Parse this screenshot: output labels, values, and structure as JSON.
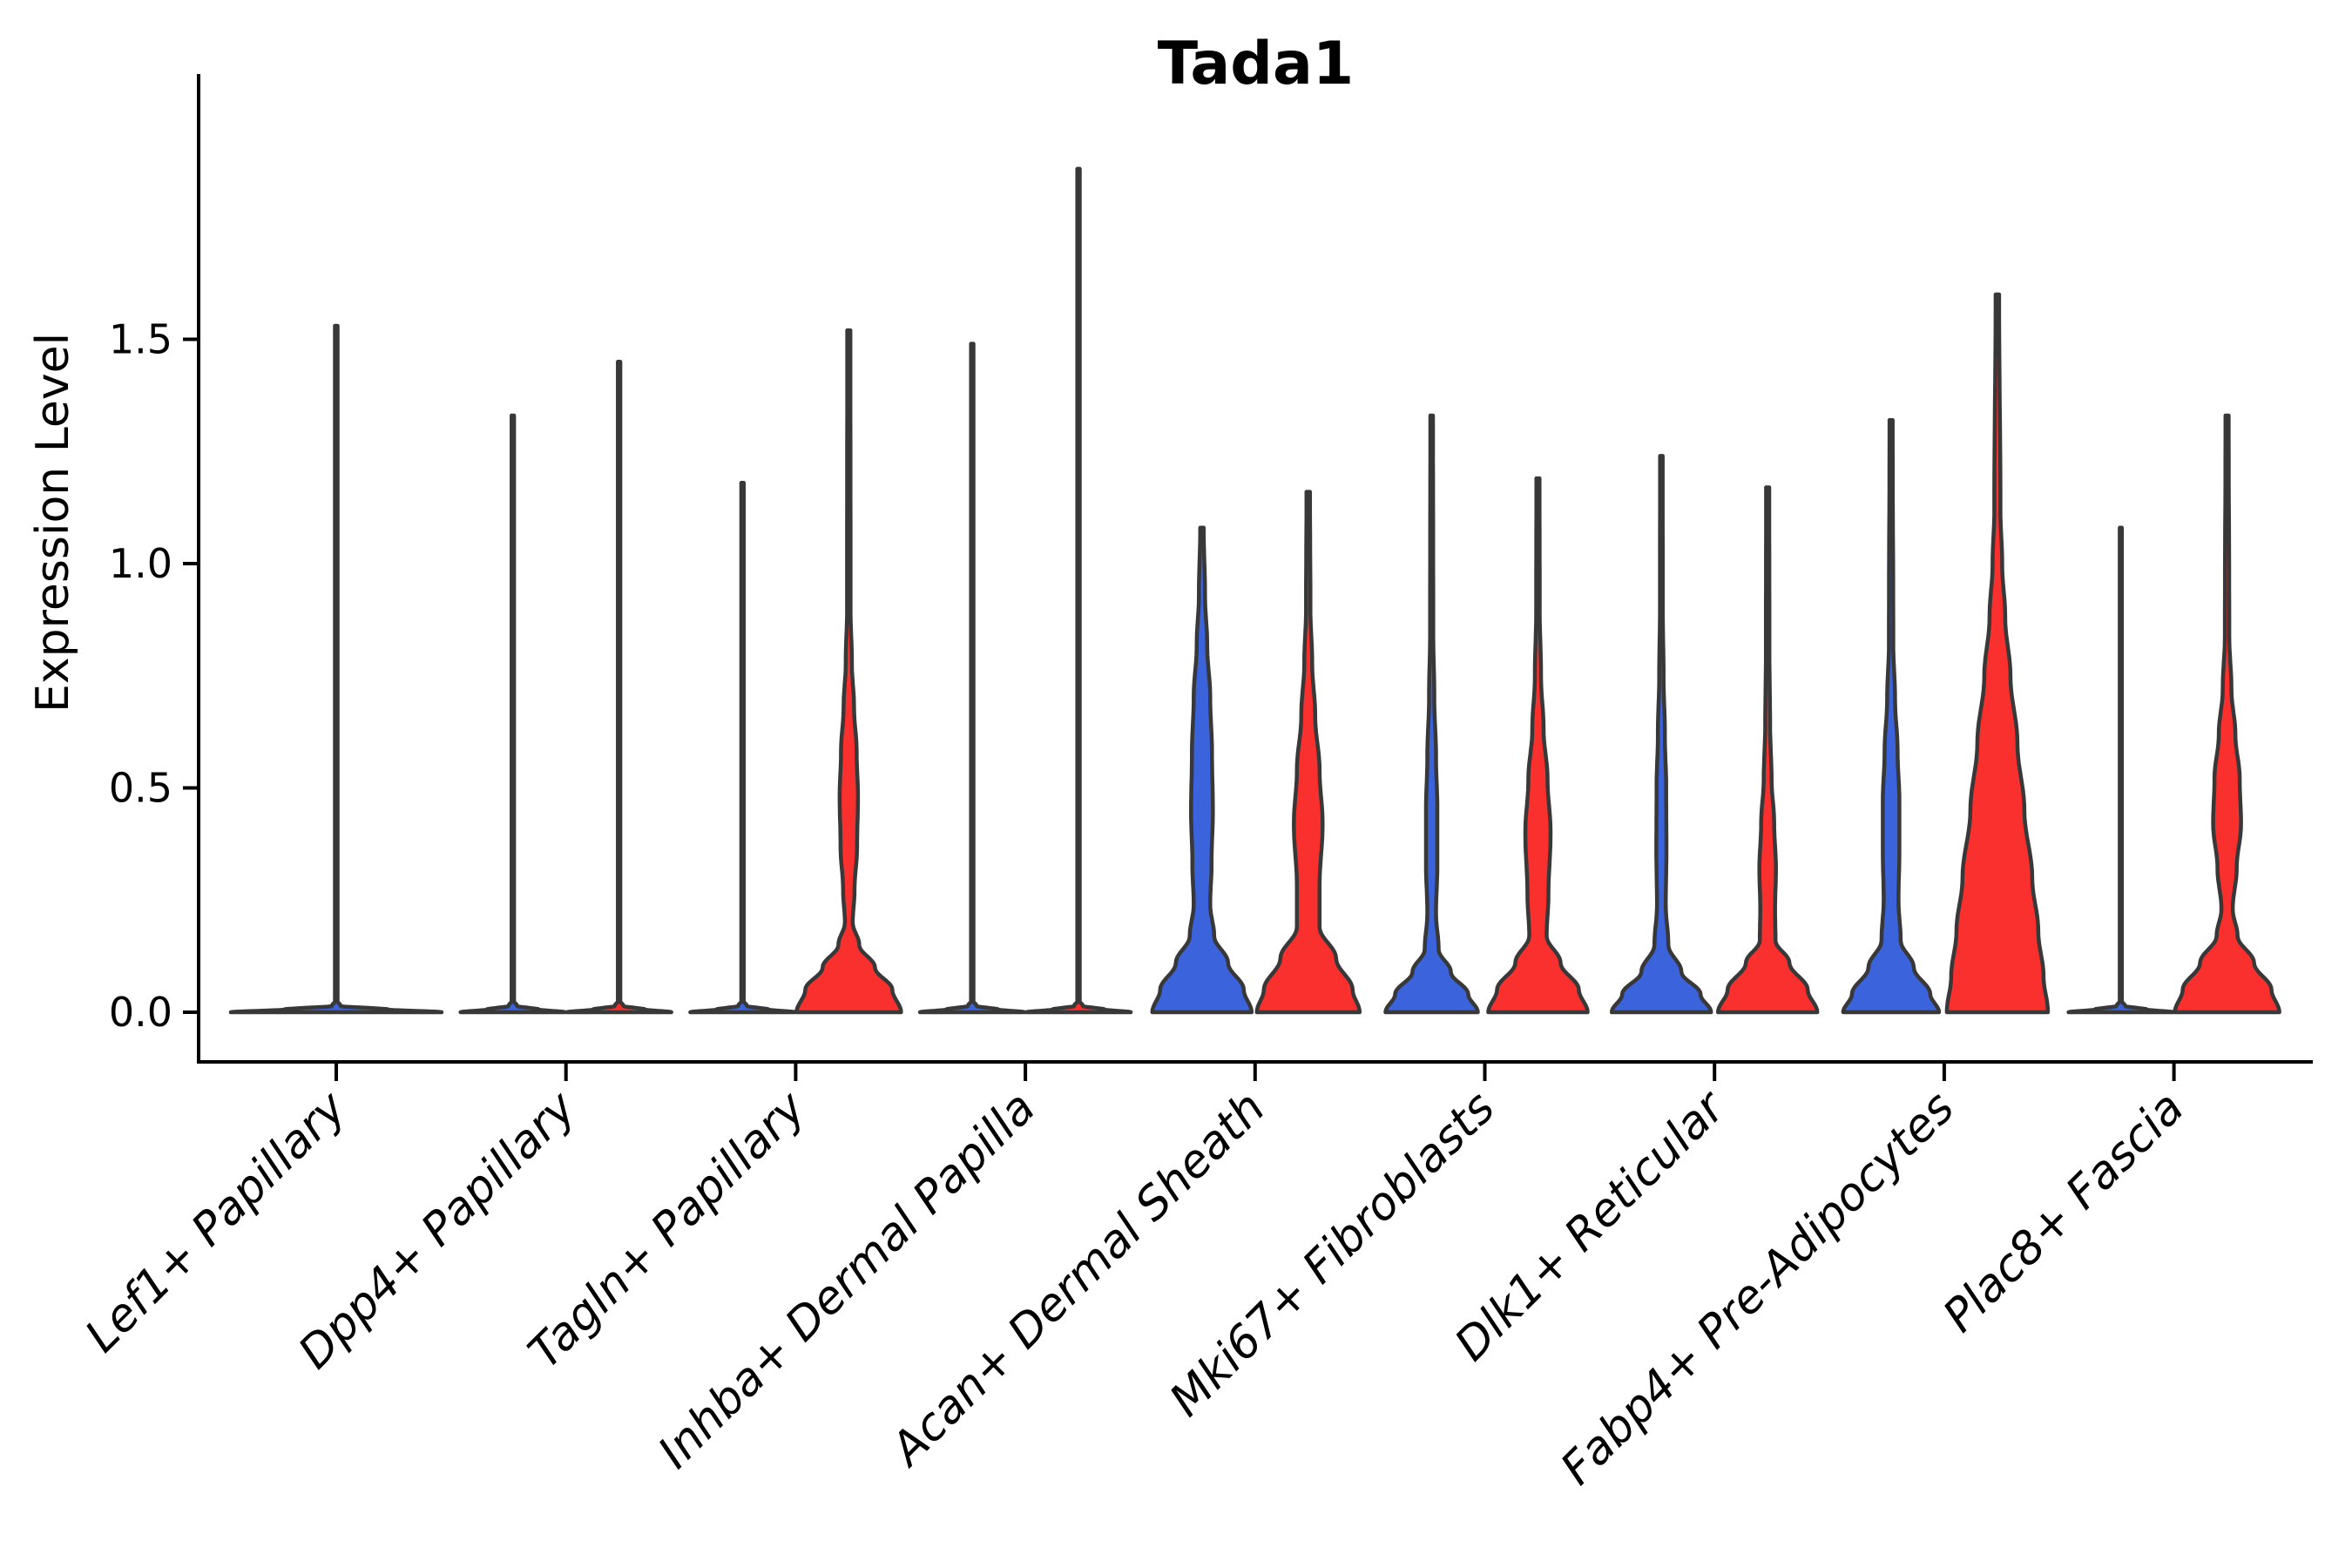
{
  "chart_data": {
    "type": "violin",
    "title": "Tada1",
    "ylabel": "Expression Level",
    "xlabel": "",
    "grid": false,
    "legend": "none",
    "ylim": [
      -0.11,
      2.09
    ],
    "ytick_values": [
      0.0,
      0.5,
      1.0,
      1.5
    ],
    "ytick_labels": [
      "0.0",
      "0.5",
      "1.0",
      "1.5"
    ],
    "x_labels_rotation_deg": 45,
    "colors": {
      "hue_blue": "#3B63DB",
      "hue_red": "#F9302D",
      "edge": "#383838",
      "axis": "#000000",
      "background": "#FFFFFF"
    },
    "categories": [
      "Lef1+ Papillary",
      "Dpp4+ Papillary",
      "Tagln+ Papillary",
      "Inhba+ Dermal Papilla",
      "Acan+ Dermal Sheath",
      "Mki67+ Fibroblasts",
      "Dlk1+ Reticular",
      "Fabp4+ Pre-Adipocytes",
      "Plac8+ Fascia"
    ],
    "groups": [
      {
        "category": "Lef1+ Papillary",
        "violins": [
          {
            "hue": "blue",
            "position": "center",
            "max": 1.53,
            "profile": [
              [
                0,
                121
              ],
              [
                0.006,
                60
              ],
              [
                0.014,
                5
              ],
              [
                0.025,
                1.5
              ],
              [
                1.53,
                1.5
              ]
            ]
          }
        ]
      },
      {
        "category": "Dpp4+ Papillary",
        "violins": [
          {
            "hue": "blue",
            "position": "left",
            "max": 1.33,
            "profile": [
              [
                0,
                60
              ],
              [
                0.006,
                30
              ],
              [
                0.014,
                5
              ],
              [
                0.025,
                1.4
              ],
              [
                1.33,
                1.4
              ]
            ]
          },
          {
            "hue": "red",
            "position": "right",
            "max": 1.45,
            "profile": [
              [
                0,
                60
              ],
              [
                0.006,
                30
              ],
              [
                0.014,
                5
              ],
              [
                0.025,
                1.4
              ],
              [
                1.45,
                1.4
              ]
            ]
          }
        ]
      },
      {
        "category": "Tagln+ Papillary",
        "violins": [
          {
            "hue": "blue",
            "position": "left",
            "max": 1.18,
            "profile": [
              [
                0,
                60
              ],
              [
                0.006,
                30
              ],
              [
                0.014,
                5
              ],
              [
                0.025,
                1.4
              ],
              [
                1.18,
                1.4
              ]
            ]
          },
          {
            "hue": "red",
            "position": "right",
            "max": 1.52,
            "profile": [
              [
                0,
                60
              ],
              [
                0.05,
                50
              ],
              [
                0.1,
                30
              ],
              [
                0.15,
                12
              ],
              [
                0.2,
                4.5
              ],
              [
                0.27,
                6.5
              ],
              [
                0.37,
                9.5
              ],
              [
                0.48,
                10.5
              ],
              [
                0.58,
                9
              ],
              [
                0.68,
                6
              ],
              [
                0.78,
                3.5
              ],
              [
                0.9,
                2
              ],
              [
                1.52,
                1.8
              ]
            ]
          }
        ]
      },
      {
        "category": "Inhba+ Dermal Papilla",
        "violins": [
          {
            "hue": "blue",
            "position": "left",
            "max": 1.49,
            "profile": [
              [
                0,
                60
              ],
              [
                0.006,
                30
              ],
              [
                0.014,
                5
              ],
              [
                0.025,
                1.4
              ],
              [
                1.49,
                1.4
              ]
            ]
          },
          {
            "hue": "red",
            "position": "right",
            "max": 1.88,
            "profile": [
              [
                0,
                60
              ],
              [
                0.006,
                30
              ],
              [
                0.014,
                5
              ],
              [
                0.025,
                1.4
              ],
              [
                1.88,
                1.4
              ]
            ]
          }
        ]
      },
      {
        "category": "Acan+ Dermal Sheath",
        "violins": [
          {
            "hue": "blue",
            "position": "left",
            "max": 1.08,
            "profile": [
              [
                0,
                57
              ],
              [
                0.05,
                48
              ],
              [
                0.11,
                30
              ],
              [
                0.17,
                14
              ],
              [
                0.24,
                9.5
              ],
              [
                0.33,
                11
              ],
              [
                0.45,
                12.5
              ],
              [
                0.58,
                11.5
              ],
              [
                0.7,
                9.5
              ],
              [
                0.82,
                6
              ],
              [
                0.93,
                3.5
              ],
              [
                1.08,
                2
              ]
            ]
          },
          {
            "hue": "red",
            "position": "right",
            "max": 1.16,
            "profile": [
              [
                0,
                59
              ],
              [
                0.05,
                51
              ],
              [
                0.12,
                32
              ],
              [
                0.19,
                13
              ],
              [
                0.28,
                13
              ],
              [
                0.42,
                16.5
              ],
              [
                0.54,
                13
              ],
              [
                0.66,
                8
              ],
              [
                0.78,
                4.5
              ],
              [
                0.9,
                2.5
              ],
              [
                1.16,
                2
              ]
            ]
          }
        ]
      },
      {
        "category": "Mki67+ Fibroblasts",
        "violins": [
          {
            "hue": "blue",
            "position": "left",
            "max": 1.33,
            "profile": [
              [
                0,
                53
              ],
              [
                0.04,
                42
              ],
              [
                0.09,
                22
              ],
              [
                0.14,
                8
              ],
              [
                0.22,
                5
              ],
              [
                0.33,
                6.5
              ],
              [
                0.45,
                6.5
              ],
              [
                0.57,
                5
              ],
              [
                0.7,
                3
              ],
              [
                0.85,
                1.8
              ],
              [
                1.33,
                1.5
              ]
            ]
          },
          {
            "hue": "red",
            "position": "right",
            "max": 1.19,
            "profile": [
              [
                0,
                57
              ],
              [
                0.05,
                47
              ],
              [
                0.11,
                26
              ],
              [
                0.17,
                10
              ],
              [
                0.26,
                12
              ],
              [
                0.4,
                14.5
              ],
              [
                0.52,
                11
              ],
              [
                0.63,
                6.5
              ],
              [
                0.75,
                3.5
              ],
              [
                0.9,
                2
              ],
              [
                1.19,
                1.8
              ]
            ]
          }
        ]
      },
      {
        "category": "Dlk1+ Reticular",
        "violins": [
          {
            "hue": "blue",
            "position": "left",
            "max": 1.24,
            "profile": [
              [
                0,
                57
              ],
              [
                0.04,
                45
              ],
              [
                0.09,
                23
              ],
              [
                0.15,
                8
              ],
              [
                0.24,
                5
              ],
              [
                0.36,
                5.8
              ],
              [
                0.5,
                5.5
              ],
              [
                0.62,
                4
              ],
              [
                0.75,
                2.5
              ],
              [
                0.9,
                1.6
              ],
              [
                1.24,
                1.5
              ]
            ]
          },
          {
            "hue": "red",
            "position": "right",
            "max": 1.17,
            "profile": [
              [
                0,
                57
              ],
              [
                0.05,
                46
              ],
              [
                0.11,
                25
              ],
              [
                0.16,
                9
              ],
              [
                0.23,
                8.5
              ],
              [
                0.32,
                9.5
              ],
              [
                0.42,
                7.5
              ],
              [
                0.52,
                4.5
              ],
              [
                0.64,
                2.8
              ],
              [
                0.8,
                2
              ],
              [
                1.17,
                1.8
              ]
            ]
          }
        ]
      },
      {
        "category": "Fabp4+ Pre-Adipocytes",
        "violins": [
          {
            "hue": "blue",
            "position": "left",
            "max": 1.32,
            "profile": [
              [
                0,
                55
              ],
              [
                0.04,
                45
              ],
              [
                0.1,
                26
              ],
              [
                0.16,
                11
              ],
              [
                0.25,
                8.5
              ],
              [
                0.36,
                9.5
              ],
              [
                0.47,
                9.5
              ],
              [
                0.58,
                7.5
              ],
              [
                0.7,
                4.5
              ],
              [
                0.82,
                2.5
              ],
              [
                1.32,
                1.8
              ]
            ]
          },
          {
            "hue": "red",
            "position": "right",
            "max": 1.6,
            "profile": [
              [
                0,
                58
              ],
              [
                0.08,
                53
              ],
              [
                0.18,
                47
              ],
              [
                0.3,
                40
              ],
              [
                0.45,
                31
              ],
              [
                0.6,
                23
              ],
              [
                0.75,
                15
              ],
              [
                0.88,
                9
              ],
              [
                1.0,
                5.5
              ],
              [
                1.12,
                3.5
              ],
              [
                1.6,
                2
              ]
            ]
          }
        ]
      },
      {
        "category": "Plac8+ Fascia",
        "violins": [
          {
            "hue": "blue",
            "position": "left",
            "max": 1.08,
            "profile": [
              [
                0,
                60
              ],
              [
                0.006,
                30
              ],
              [
                0.014,
                5
              ],
              [
                0.025,
                1.2
              ],
              [
                1.08,
                1.2
              ]
            ]
          },
          {
            "hue": "red",
            "position": "right",
            "max": 1.33,
            "profile": [
              [
                0,
                60
              ],
              [
                0.05,
                51
              ],
              [
                0.11,
                31
              ],
              [
                0.17,
                12
              ],
              [
                0.23,
                6.5
              ],
              [
                0.32,
                11
              ],
              [
                0.42,
                16
              ],
              [
                0.52,
                14.5
              ],
              [
                0.62,
                9.5
              ],
              [
                0.72,
                5
              ],
              [
                0.84,
                2.5
              ],
              [
                1.33,
                1.8
              ]
            ]
          }
        ]
      }
    ]
  }
}
